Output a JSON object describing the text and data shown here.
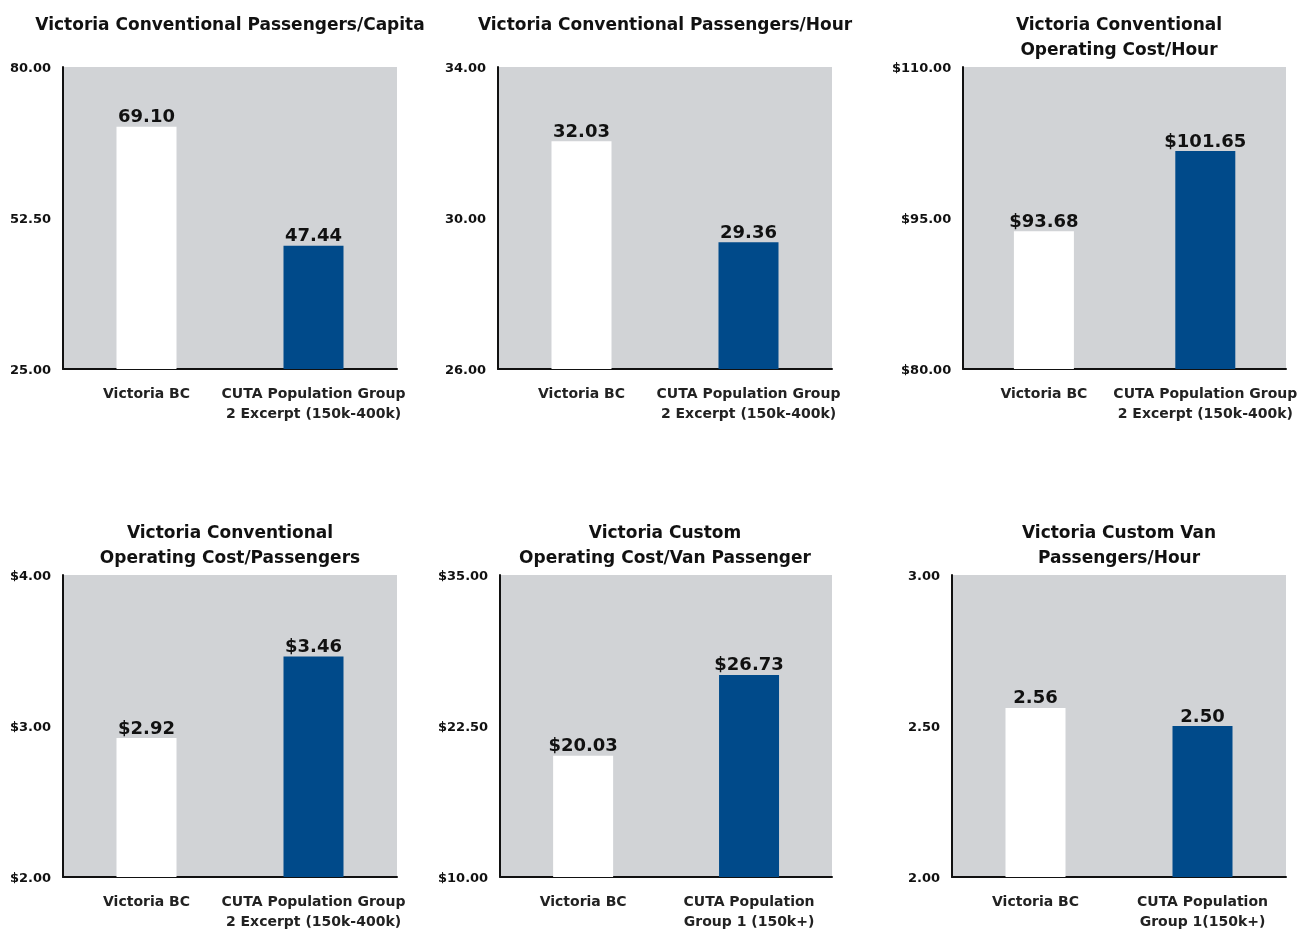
{
  "chart_data": [
    {
      "type": "bar",
      "title": "Victoria Conventional Passengers/Capita",
      "categories": [
        "Victoria BC",
        "CUTA Population Group\n2 Excerpt (150k-400k)"
      ],
      "values": [
        69.1,
        47.44
      ],
      "colors": [
        "#ffffff",
        "#004a8a"
      ],
      "value_labels": [
        "69.10",
        "47.44"
      ],
      "ylim": [
        25,
        80
      ],
      "yticks": [
        {
          "value": 25,
          "label": "25.00"
        },
        {
          "value": 52.5,
          "label": "52.50"
        },
        {
          "value": 80,
          "label": "80.00"
        }
      ],
      "grid": false
    },
    {
      "type": "bar",
      "title": "Victoria Conventional Passengers/Hour",
      "categories": [
        "Victoria BC",
        "CUTA Population Group\n2 Excerpt (150k-400k)"
      ],
      "values": [
        32.03,
        29.36
      ],
      "colors": [
        "#ffffff",
        "#004a8a"
      ],
      "value_labels": [
        "32.03",
        "29.36"
      ],
      "ylim": [
        26,
        34
      ],
      "yticks": [
        {
          "value": 26,
          "label": "26.00"
        },
        {
          "value": 30,
          "label": "30.00"
        },
        {
          "value": 34,
          "label": "34.00"
        }
      ],
      "grid": false
    },
    {
      "type": "bar",
      "title": "Victoria Conventional\nOperating Cost/Hour",
      "categories": [
        "Victoria BC",
        "CUTA Population Group\n2 Excerpt (150k-400k)"
      ],
      "values": [
        93.68,
        101.65
      ],
      "colors": [
        "#ffffff",
        "#004a8a"
      ],
      "value_labels": [
        "$93.68",
        "$101.65"
      ],
      "ylim": [
        80,
        110
      ],
      "yticks": [
        {
          "value": 80,
          "label": "$80.00"
        },
        {
          "value": 95,
          "label": "$95.00"
        },
        {
          "value": 110,
          "label": "$110.00"
        }
      ],
      "grid": false
    },
    {
      "type": "bar",
      "title": "Victoria Conventional\nOperating Cost/Passengers",
      "categories": [
        "Victoria BC",
        "CUTA Population Group\n2 Excerpt (150k-400k)"
      ],
      "values": [
        2.92,
        3.46
      ],
      "colors": [
        "#ffffff",
        "#004a8a"
      ],
      "value_labels": [
        "$2.92",
        "$3.46"
      ],
      "ylim": [
        2,
        4
      ],
      "yticks": [
        {
          "value": 2,
          "label": "$2.00"
        },
        {
          "value": 3,
          "label": "$3.00"
        },
        {
          "value": 4,
          "label": "$4.00"
        }
      ],
      "grid": false
    },
    {
      "type": "bar",
      "title": "Victoria Custom\nOperating Cost/Van Passenger",
      "categories": [
        "Victoria BC",
        "CUTA Population\nGroup 1 (150k+)"
      ],
      "values": [
        20.03,
        26.73
      ],
      "colors": [
        "#ffffff",
        "#004a8a"
      ],
      "value_labels": [
        "$20.03",
        "$26.73"
      ],
      "ylim": [
        10,
        35
      ],
      "yticks": [
        {
          "value": 10,
          "label": "$10.00"
        },
        {
          "value": 22.5,
          "label": "$22.50"
        },
        {
          "value": 35,
          "label": "$35.00"
        }
      ],
      "grid": false
    },
    {
      "type": "bar",
      "title": "Victoria Custom Van\nPassengers/Hour",
      "categories": [
        "Victoria BC",
        "CUTA Population\nGroup 1(150k+)"
      ],
      "values": [
        2.56,
        2.5
      ],
      "colors": [
        "#ffffff",
        "#004a8a"
      ],
      "value_labels": [
        "2.56",
        "2.50"
      ],
      "ylim": [
        2,
        3
      ],
      "yticks": [
        {
          "value": 2,
          "label": "2.00"
        },
        {
          "value": 2.5,
          "label": "2.50"
        },
        {
          "value": 3,
          "label": "3.00"
        }
      ],
      "grid": false
    }
  ]
}
